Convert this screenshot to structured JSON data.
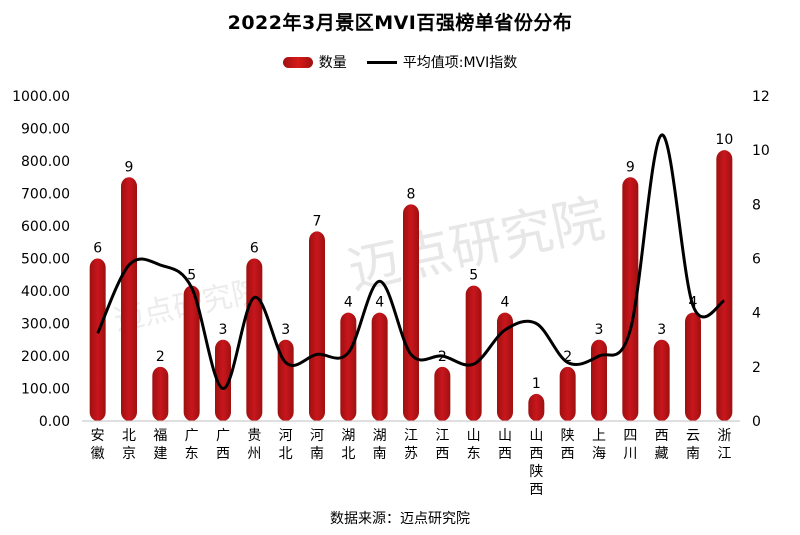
{
  "chart_data": {
    "type": "bar",
    "title": "2022年3月景区MVI百强榜单省份分布",
    "source": "数据来源：迈点研究院",
    "watermark": "迈点研究院",
    "categories": [
      "安徽",
      "北京",
      "福建",
      "广东",
      "广西",
      "贵州",
      "河北",
      "河南",
      "湖北",
      "湖南",
      "江苏",
      "江西",
      "山东",
      "山西",
      "山西陕西",
      "陕西",
      "上海",
      "四川",
      "西藏",
      "云南",
      "浙江"
    ],
    "series": [
      {
        "name": "数量",
        "axis": "right",
        "type": "bar",
        "values": [
          6,
          9,
          2,
          5,
          3,
          6,
          3,
          7,
          4,
          4,
          8,
          2,
          5,
          4,
          1,
          2,
          3,
          9,
          3,
          4,
          10
        ]
      },
      {
        "name": "平均值项:MVI指数",
        "axis": "left",
        "type": "line",
        "values": [
          270,
          480,
          480,
          410,
          100,
          380,
          180,
          205,
          210,
          430,
          205,
          200,
          175,
          280,
          300,
          180,
          200,
          280,
          880,
          355,
          370
        ]
      }
    ],
    "ylim_left": [
      0,
      1000
    ],
    "yticks_left": [
      "0.00",
      "100.00",
      "200.00",
      "300.00",
      "400.00",
      "500.00",
      "600.00",
      "700.00",
      "800.00",
      "900.00",
      "1000.00"
    ],
    "ylim_right": [
      0,
      12
    ],
    "yticks_right": [
      "0",
      "2",
      "4",
      "6",
      "8",
      "10",
      "12"
    ],
    "colors": {
      "bar": "#c8161d",
      "bar_dark": "#9e1010",
      "line": "#000000"
    }
  }
}
